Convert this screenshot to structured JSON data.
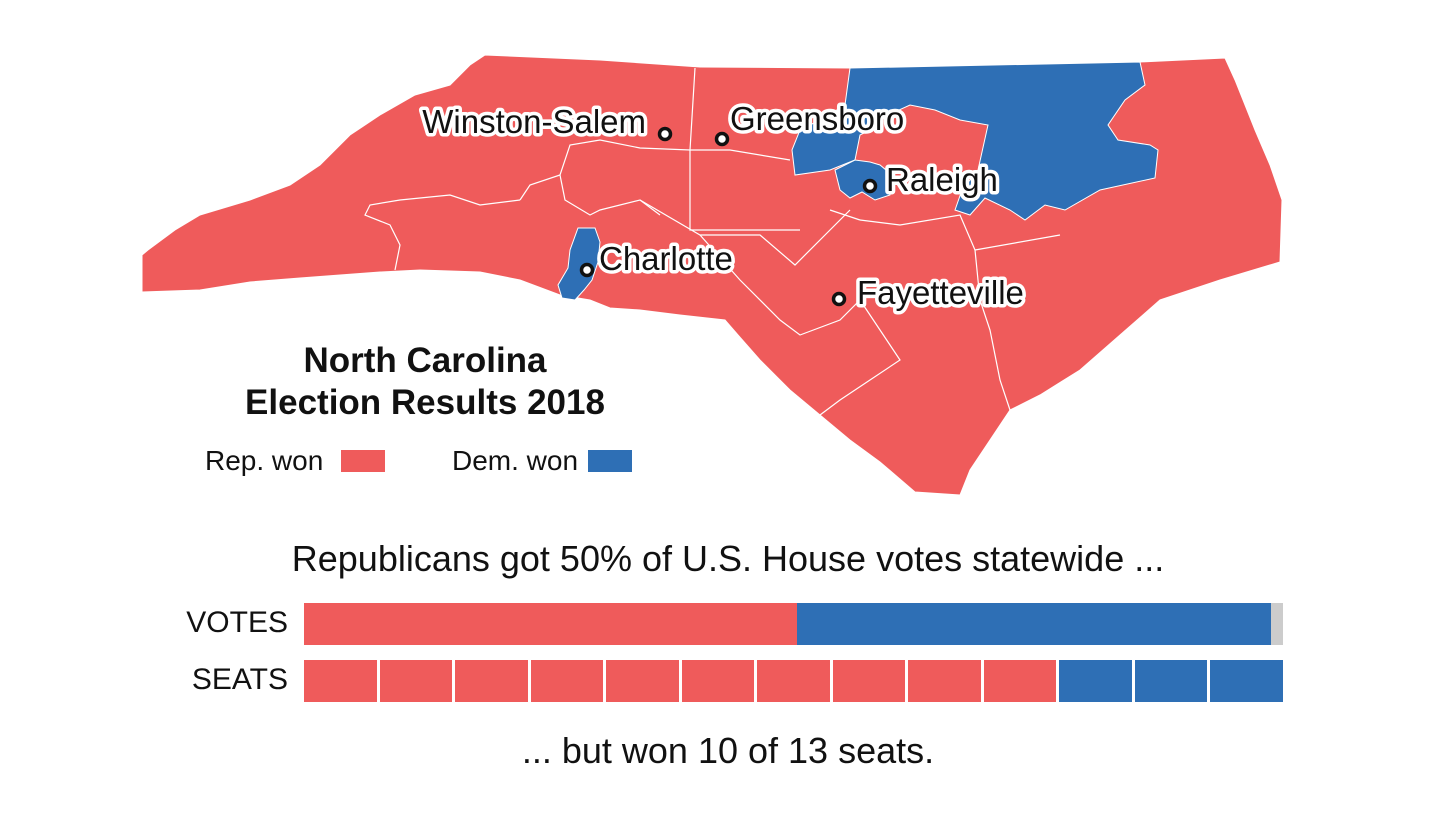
{
  "colors": {
    "republican": "#ef5b5b",
    "democrat": "#2e6fb5",
    "other": "#cccccc",
    "boundary": "#ffffff"
  },
  "map": {
    "title_line1": "North Carolina",
    "title_line2": "Election Results 2018",
    "legend": {
      "rep_label": "Rep. won",
      "dem_label": "Dem. won"
    },
    "cities": [
      {
        "name": "Winston-Salem"
      },
      {
        "name": "Greensboro"
      },
      {
        "name": "Raleigh"
      },
      {
        "name": "Charlotte"
      },
      {
        "name": "Fayetteville"
      }
    ]
  },
  "chart_data": {
    "type": "bar",
    "caption_top": "Republicans got 50% of U.S. House votes statewide ...",
    "caption_bottom": "... but won 10 of 13 seats.",
    "categories": [
      "VOTES",
      "SEATS"
    ],
    "votes_share": {
      "republican": 50.4,
      "democrat": 48.4,
      "other": 1.2
    },
    "seats": {
      "republican": 10,
      "democrat": 3,
      "total": 13
    }
  }
}
